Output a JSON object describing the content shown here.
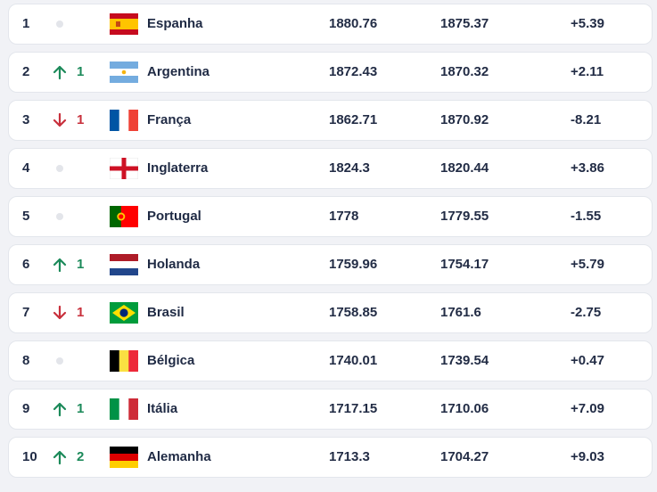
{
  "ranking": [
    {
      "rank": "1",
      "movement": "same",
      "change": "",
      "country": "Espanha",
      "flag": "flag-spain-icon",
      "points": "1880.76",
      "previous_points": "1875.37",
      "difference": "+5.39"
    },
    {
      "rank": "2",
      "movement": "up",
      "change": "1",
      "country": "Argentina",
      "flag": "flag-argentina-icon",
      "points": "1872.43",
      "previous_points": "1870.32",
      "difference": "+2.11"
    },
    {
      "rank": "3",
      "movement": "down",
      "change": "1",
      "country": "França",
      "flag": "flag-france-icon",
      "points": "1862.71",
      "previous_points": "1870.92",
      "difference": "-8.21"
    },
    {
      "rank": "4",
      "movement": "same",
      "change": "",
      "country": "Inglaterra",
      "flag": "flag-england-icon",
      "points": "1824.3",
      "previous_points": "1820.44",
      "difference": "+3.86"
    },
    {
      "rank": "5",
      "movement": "same",
      "change": "",
      "country": "Portugal",
      "flag": "flag-portugal-icon",
      "points": "1778",
      "previous_points": "1779.55",
      "difference": "-1.55"
    },
    {
      "rank": "6",
      "movement": "up",
      "change": "1",
      "country": "Holanda",
      "flag": "flag-netherlands-icon",
      "points": "1759.96",
      "previous_points": "1754.17",
      "difference": "+5.79"
    },
    {
      "rank": "7",
      "movement": "down",
      "change": "1",
      "country": "Brasil",
      "flag": "flag-brazil-icon",
      "points": "1758.85",
      "previous_points": "1761.6",
      "difference": "-2.75"
    },
    {
      "rank": "8",
      "movement": "same",
      "change": "",
      "country": "Bélgica",
      "flag": "flag-belgium-icon",
      "points": "1740.01",
      "previous_points": "1739.54",
      "difference": "+0.47"
    },
    {
      "rank": "9",
      "movement": "up",
      "change": "1",
      "country": "Itália",
      "flag": "flag-italy-icon",
      "points": "1717.15",
      "previous_points": "1710.06",
      "difference": "+7.09"
    },
    {
      "rank": "10",
      "movement": "up",
      "change": "2",
      "country": "Alemanha",
      "flag": "flag-germany-icon",
      "points": "1713.3",
      "previous_points": "1704.27",
      "difference": "+9.03"
    }
  ],
  "colors": {
    "up": "#1c8a5a",
    "down": "#c8303c",
    "neutral_dot": "#e3e5ea",
    "row_background": "#ffffff",
    "page_background": "#f1f2f6"
  }
}
